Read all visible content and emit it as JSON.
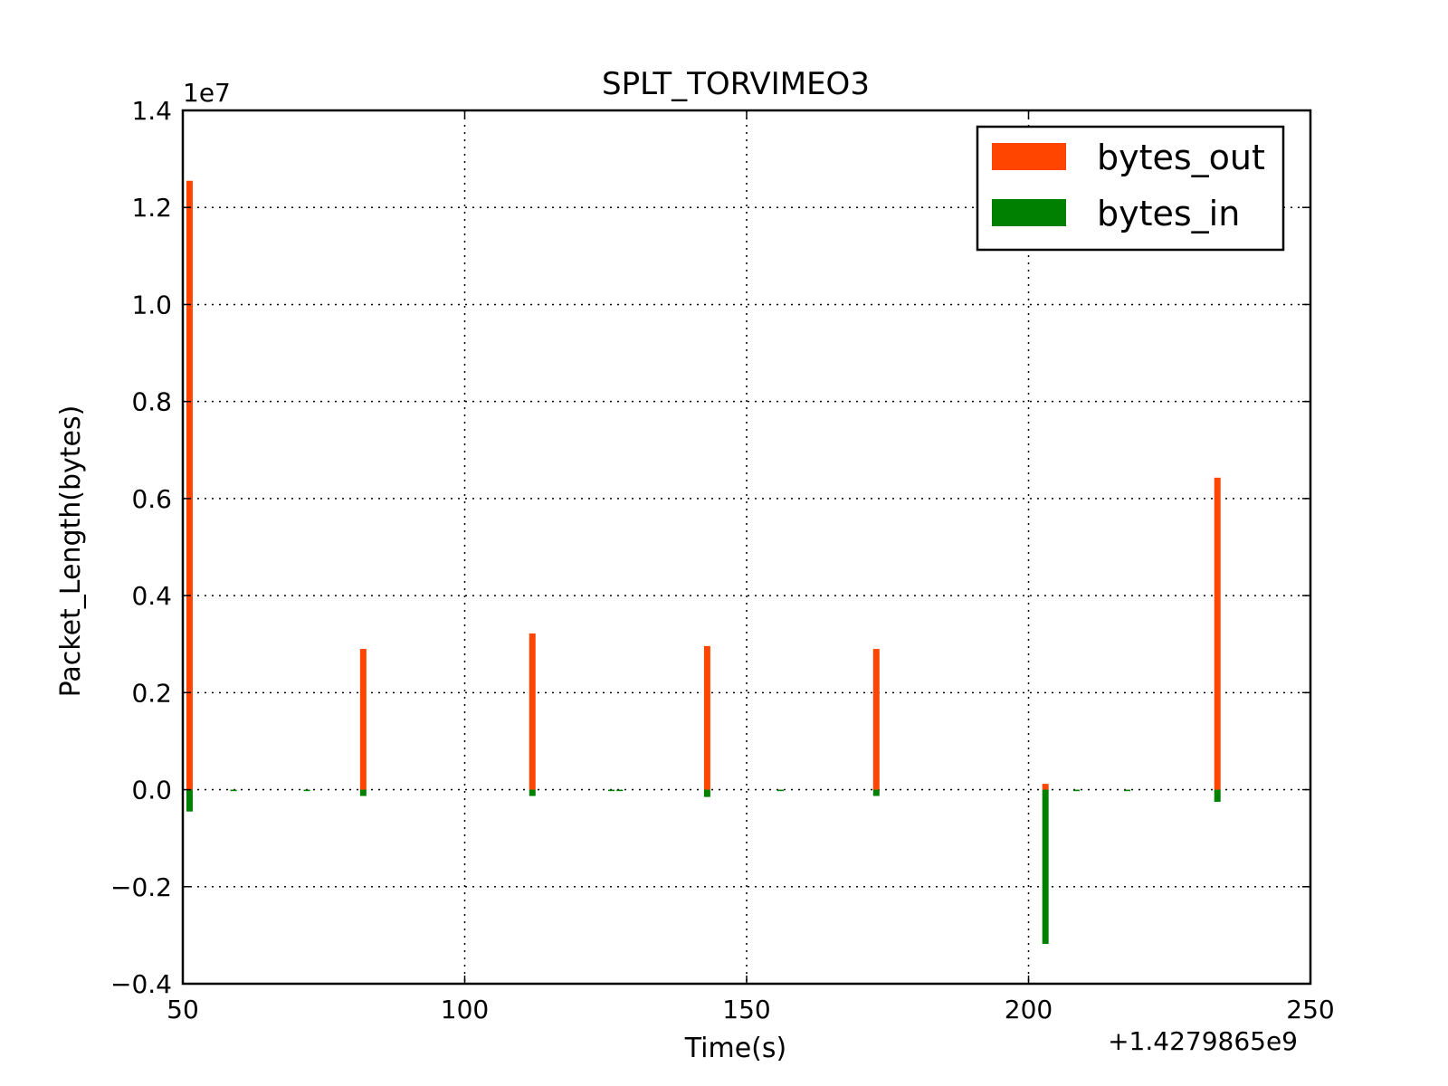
{
  "chart_data": {
    "type": "bar",
    "title": "SPLT_TORVIMEO3",
    "xlabel": "Time(s)",
    "ylabel": "Packet_Length(bytes)",
    "x_offset_label": "+1.4279865e9",
    "y_scale_label": "1e7",
    "xlim": [
      50,
      250
    ],
    "ylim": [
      -0.4,
      1.4
    ],
    "x_ticks": [
      50,
      100,
      150,
      200,
      250
    ],
    "x_tick_labels": [
      "50",
      "100",
      "150",
      "200",
      "250"
    ],
    "y_ticks": [
      -0.4,
      -0.2,
      0.0,
      0.2,
      0.4,
      0.6,
      0.8,
      1.0,
      1.2,
      1.4
    ],
    "y_tick_labels": [
      "−0.4",
      "−0.2",
      "0.0",
      "0.2",
      "0.4",
      "0.6",
      "0.8",
      "1.0",
      "1.2",
      "1.4"
    ],
    "grid": true,
    "legend_position": "top-right",
    "series": [
      {
        "name": "bytes_out",
        "color": "#ff4500",
        "x": [
          51.2,
          82,
          112,
          143,
          173,
          203,
          233.5
        ],
        "values": [
          1.255,
          0.29,
          0.322,
          0.296,
          0.29,
          0.012,
          0.643
        ]
      },
      {
        "name": "bytes_in",
        "color": "#008000",
        "x": [
          51.2,
          59,
          72,
          82,
          112,
          126,
          127.5,
          143,
          156,
          173,
          203,
          208.5,
          217.5,
          233.5
        ],
        "values": [
          -0.045,
          -0.003,
          -0.003,
          -0.013,
          -0.013,
          -0.003,
          -0.003,
          -0.015,
          -0.003,
          -0.013,
          -0.318,
          -0.003,
          -0.003,
          -0.025
        ]
      }
    ]
  }
}
